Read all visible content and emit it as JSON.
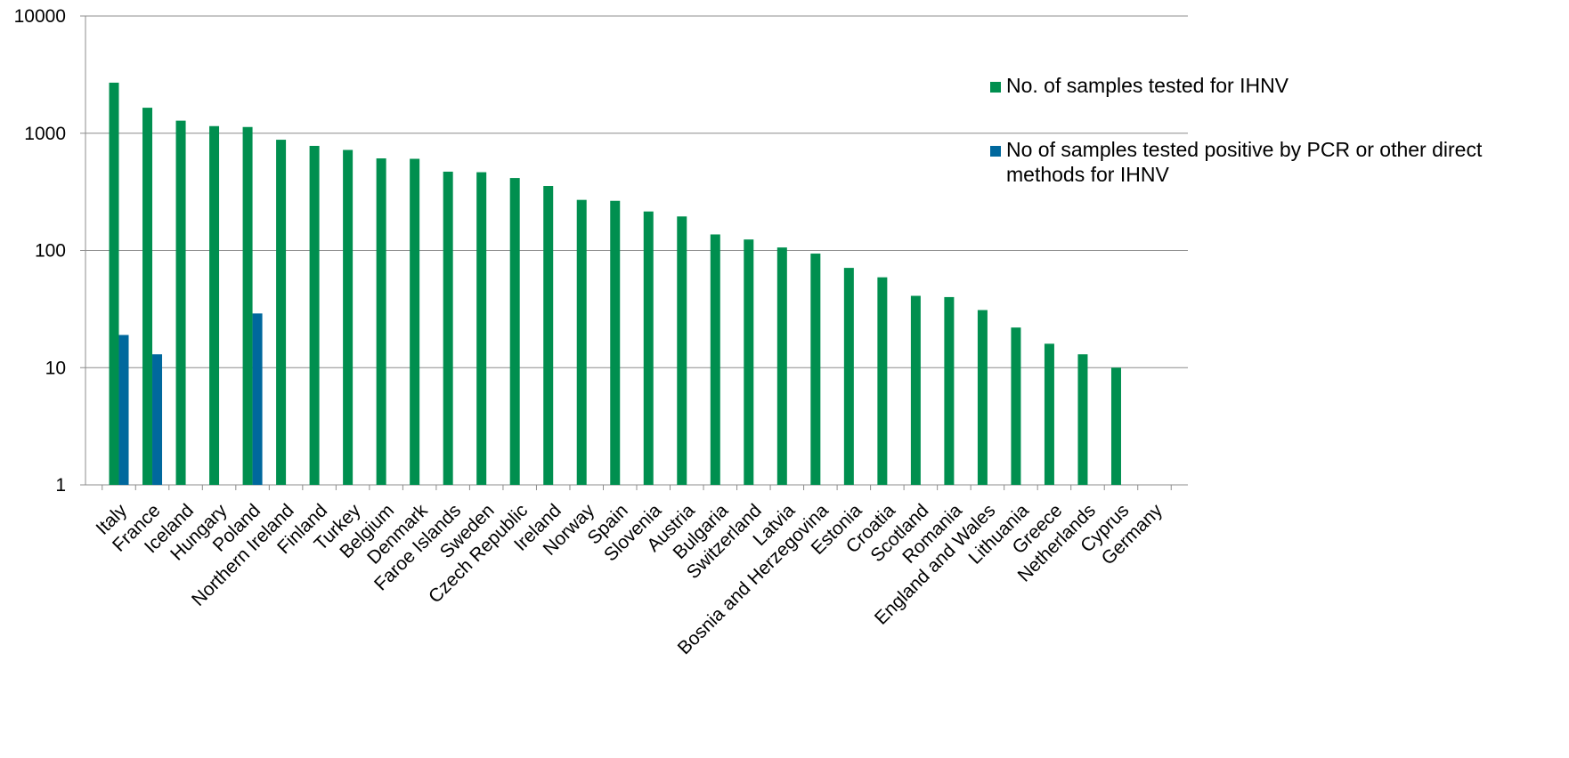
{
  "chart_data": {
    "type": "bar",
    "title": "",
    "xlabel": "",
    "ylabel": "",
    "y_scale": "log",
    "ylim": [
      1,
      10000
    ],
    "y_ticks": [
      1,
      10,
      100,
      1000,
      10000
    ],
    "y_tick_labels": [
      "1",
      "10",
      "100",
      "1000",
      "10000"
    ],
    "grid": true,
    "legend_position": "right",
    "categories": [
      "Italy",
      "France",
      "Iceland",
      "Hungary",
      "Poland",
      "Northern Ireland",
      "Finland",
      "Turkey",
      "Belgium",
      "Denmark",
      "Faroe Islands",
      "Sweden",
      "Czech Republic",
      "Ireland",
      "Norway",
      "Spain",
      "Slovenia",
      "Austria",
      "Bulgaria",
      "Switzerland",
      "Latvia",
      "Bosnia and Herzegovina",
      "Estonia",
      "Croatia",
      "Scotland",
      "Romania",
      "England and Wales",
      "Lithuania",
      "Greece",
      "Netherlands",
      "Cyprus",
      "Germany"
    ],
    "series": [
      {
        "name": "No. of samples tested for IHNV",
        "color": "#008f4f",
        "values": [
          2700,
          1650,
          1280,
          1150,
          1130,
          880,
          780,
          720,
          610,
          605,
          470,
          465,
          415,
          355,
          270,
          265,
          215,
          195,
          137,
          124,
          106,
          94,
          71,
          59,
          41,
          40,
          31,
          22,
          16,
          13,
          10,
          null
        ]
      },
      {
        "name": "No of samples tested positive by PCR or other direct methods for IHNV",
        "color": "#00689d",
        "values": [
          19,
          13,
          null,
          null,
          29,
          null,
          null,
          null,
          null,
          null,
          null,
          null,
          null,
          null,
          null,
          null,
          null,
          null,
          null,
          null,
          null,
          null,
          null,
          null,
          null,
          null,
          null,
          null,
          null,
          null,
          null,
          null
        ]
      }
    ]
  }
}
